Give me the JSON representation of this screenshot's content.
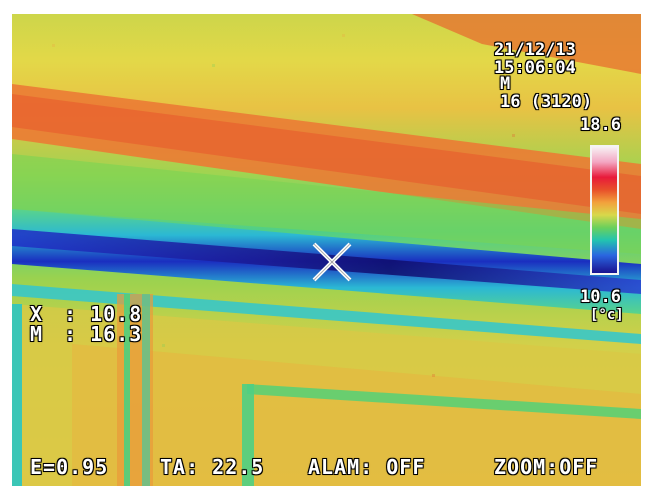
{
  "screen": {
    "date": "21/12/13",
    "time": "15:06:04",
    "mode": "M",
    "range": "16 (3120)",
    "scale_max": "18.6",
    "scale_min": "10.6",
    "unit": "[°c]",
    "point_x_label": "X",
    "point_x_value": ": 10.8",
    "point_m_label": "M",
    "point_m_value": ": 16.3",
    "emissivity": "E=0.95",
    "ambient": "TA: 22.5",
    "alarm": "ALAM: OFF",
    "zoom": "ZOOM:OFF"
  },
  "icons": {
    "cursor": "crosshair-x-icon"
  },
  "colors": {
    "hot": "#e8482a",
    "warm": "#f2a13c",
    "mild": "#d8d84a",
    "cool": "#6ad05c",
    "cold": "#22c3b0",
    "coldest": "#1a1290"
  }
}
